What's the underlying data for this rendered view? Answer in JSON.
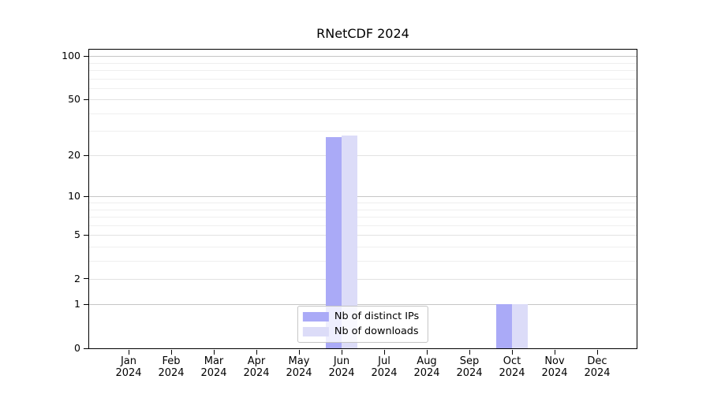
{
  "chart_data": {
    "type": "bar",
    "title": "RNetCDF 2024",
    "categories": [
      "Jan",
      "Feb",
      "Mar",
      "Apr",
      "May",
      "Jun",
      "Jul",
      "Aug",
      "Sep",
      "Oct",
      "Nov",
      "Dec"
    ],
    "category_year": "2024",
    "series": [
      {
        "name": "Nb of distinct IPs",
        "color": "#aaaaf7",
        "values": [
          0,
          0,
          0,
          0,
          0,
          27,
          0,
          0,
          0,
          1,
          0,
          0
        ]
      },
      {
        "name": "Nb of downloads",
        "color": "#dcdcf8",
        "values": [
          0,
          0,
          0,
          0,
          0,
          28,
          0,
          0,
          0,
          1,
          0,
          0
        ]
      }
    ],
    "xlabel": "",
    "ylabel": "",
    "yscale": "log1p",
    "ylim": [
      0,
      111
    ],
    "yticks": [
      0,
      1,
      2,
      5,
      10,
      20,
      50,
      100
    ],
    "decade_ticks": [
      1,
      10,
      100
    ],
    "minor_gridlines": [
      3,
      4,
      6,
      7,
      8,
      9,
      30,
      40,
      60,
      70,
      80,
      90
    ],
    "grid": true,
    "legend_position": "lower center"
  }
}
